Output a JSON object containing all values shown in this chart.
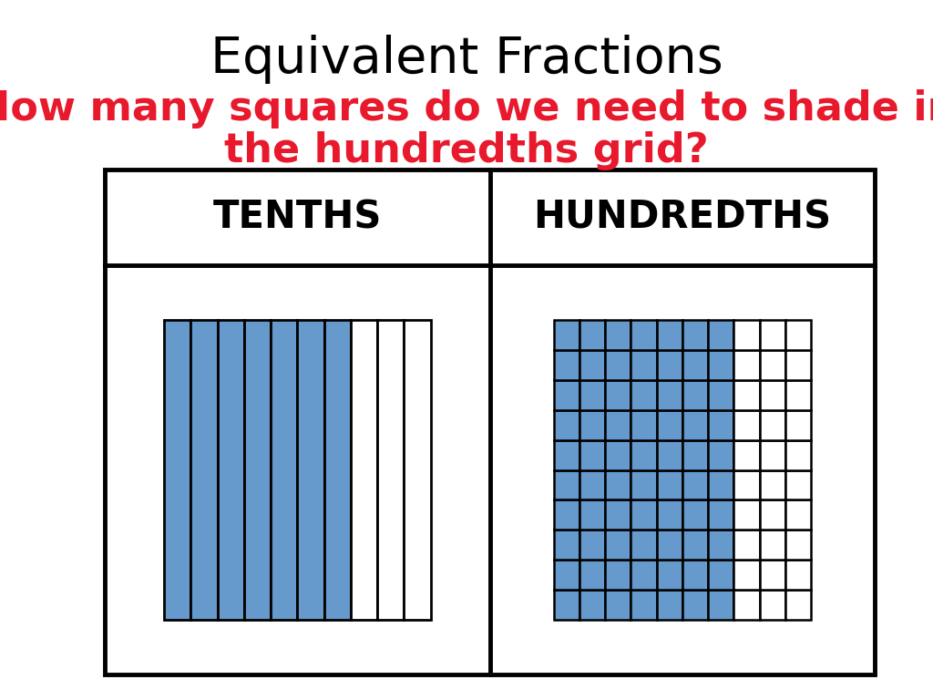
{
  "title": "Equivalent Fractions",
  "subtitle_line1": "How many squares do we need to shade in",
  "subtitle_line2": "the hundredths grid?",
  "title_color": "#000000",
  "subtitle_color": "#e8192c",
  "blue_color": "#6699cc",
  "white_color": "#ffffff",
  "black_color": "#000000",
  "bg_color": "#ffffff",
  "tenths_label": "TENTHS",
  "hundredths_label": "HUNDREDTHS",
  "tenths_shaded": 7,
  "tenths_total": 10,
  "hundredths_cols_shaded": 7,
  "hundredths_total_cols": 10,
  "hundredths_total_rows": 10,
  "title_fontsize": 40,
  "subtitle_fontsize": 32,
  "header_fontsize": 30
}
